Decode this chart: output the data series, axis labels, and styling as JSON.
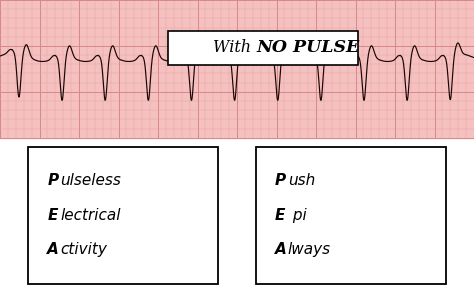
{
  "bg_color": "#ffffff",
  "ecg_bg_color": "#f5c0c0",
  "ecg_grid_minor_color": "#e8a0a0",
  "ecg_grid_major_color": "#d88888",
  "ecg_line_color": "#1a0505",
  "title_text1": "With ",
  "title_text2": "NO PULSE",
  "left_box_lines": [
    [
      "P",
      "ulseless"
    ],
    [
      "E",
      "lectrical"
    ],
    [
      "A",
      "ctivity"
    ]
  ],
  "right_box_lines": [
    [
      "P",
      "ush"
    ],
    [
      "E",
      " pi"
    ],
    [
      "A",
      "lways"
    ]
  ]
}
